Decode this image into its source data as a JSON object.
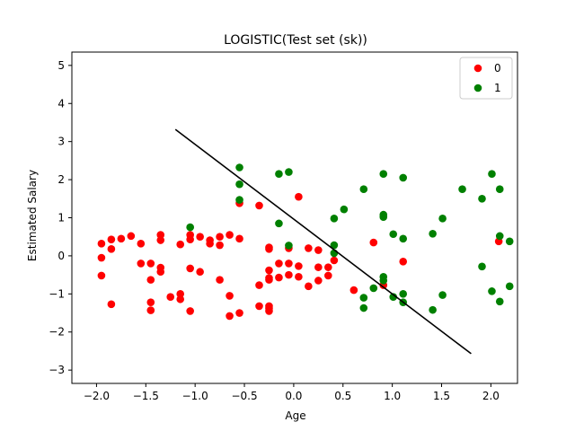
{
  "chart_data": {
    "type": "scatter",
    "title": "LOGISTIC(Test set (sk))",
    "xlabel": "Age",
    "ylabel": "Estimated Salary",
    "xlim": [
      -2.25,
      2.27
    ],
    "ylim": [
      -3.35,
      5.35
    ],
    "xticks": [
      -2.0,
      -1.5,
      -1.0,
      -0.5,
      0.0,
      0.5,
      1.0,
      1.5,
      2.0
    ],
    "xtick_labels": [
      "−2.0",
      "−1.5",
      "−1.0",
      "−0.5",
      "0.0",
      "0.5",
      "1.0",
      "1.5",
      "2.0"
    ],
    "yticks": [
      -3,
      -2,
      -1,
      0,
      1,
      2,
      3,
      4,
      5
    ],
    "ytick_labels": [
      "−3",
      "−2",
      "−1",
      "0",
      "1",
      "2",
      "3",
      "4",
      "5"
    ],
    "grid": false,
    "legend": {
      "placement": "top-right"
    },
    "series": [
      {
        "name": "0",
        "color": "#ff0000",
        "points": [
          [
            -1.95,
            0.32
          ],
          [
            -1.95,
            -0.05
          ],
          [
            -1.95,
            -0.52
          ],
          [
            -1.85,
            0.43
          ],
          [
            -1.85,
            0.18
          ],
          [
            -1.85,
            -1.27
          ],
          [
            -1.75,
            0.45
          ],
          [
            -1.65,
            0.52
          ],
          [
            -1.55,
            0.32
          ],
          [
            -1.55,
            -0.2
          ],
          [
            -1.45,
            -0.2
          ],
          [
            -1.45,
            -0.63
          ],
          [
            -1.45,
            -1.22
          ],
          [
            -1.45,
            -1.43
          ],
          [
            -1.35,
            0.55
          ],
          [
            -1.35,
            0.41
          ],
          [
            -1.35,
            -0.31
          ],
          [
            -1.35,
            -0.42
          ],
          [
            -1.25,
            -1.08
          ],
          [
            -1.15,
            0.3
          ],
          [
            -1.15,
            -1.0
          ],
          [
            -1.15,
            -1.14
          ],
          [
            -1.05,
            0.55
          ],
          [
            -1.05,
            0.43
          ],
          [
            -1.05,
            -0.33
          ],
          [
            -1.05,
            -1.45
          ],
          [
            -0.95,
            0.5
          ],
          [
            -0.95,
            -0.42
          ],
          [
            -0.85,
            0.41
          ],
          [
            -0.85,
            0.32
          ],
          [
            -0.75,
            0.5
          ],
          [
            -0.75,
            0.28
          ],
          [
            -0.75,
            -0.63
          ],
          [
            -0.65,
            0.55
          ],
          [
            -0.65,
            -1.05
          ],
          [
            -0.65,
            -1.58
          ],
          [
            -0.55,
            1.38
          ],
          [
            -0.55,
            0.45
          ],
          [
            -0.55,
            -1.5
          ],
          [
            -0.35,
            1.32
          ],
          [
            -0.35,
            -0.77
          ],
          [
            -0.35,
            -1.32
          ],
          [
            -0.25,
            0.22
          ],
          [
            -0.25,
            0.18
          ],
          [
            -0.25,
            -0.38
          ],
          [
            -0.25,
            -0.58
          ],
          [
            -0.25,
            -0.63
          ],
          [
            -0.25,
            -1.32
          ],
          [
            -0.25,
            -1.38
          ],
          [
            -0.25,
            -1.45
          ],
          [
            -0.15,
            -0.2
          ],
          [
            -0.15,
            -0.57
          ],
          [
            -0.05,
            0.2
          ],
          [
            -0.05,
            -0.2
          ],
          [
            -0.05,
            -0.5
          ],
          [
            0.05,
            -0.27
          ],
          [
            0.05,
            -0.55
          ],
          [
            0.05,
            1.55
          ],
          [
            0.15,
            0.2
          ],
          [
            0.15,
            -0.8
          ],
          [
            0.25,
            0.15
          ],
          [
            0.25,
            -0.3
          ],
          [
            0.25,
            -0.65
          ],
          [
            0.35,
            -0.3
          ],
          [
            0.35,
            -0.52
          ],
          [
            0.41,
            -0.12
          ],
          [
            0.61,
            -0.9
          ],
          [
            0.81,
            0.35
          ],
          [
            0.91,
            -0.77
          ],
          [
            1.11,
            -0.15
          ],
          [
            2.08,
            0.38
          ]
        ]
      },
      {
        "name": "1",
        "color": "#008000",
        "points": [
          [
            -1.05,
            0.75
          ],
          [
            -0.55,
            2.32
          ],
          [
            -0.55,
            1.88
          ],
          [
            -0.55,
            1.47
          ],
          [
            -0.15,
            2.15
          ],
          [
            -0.15,
            0.85
          ],
          [
            -0.05,
            2.2
          ],
          [
            -0.05,
            0.27
          ],
          [
            0.41,
            0.98
          ],
          [
            0.41,
            0.28
          ],
          [
            0.41,
            0.07
          ],
          [
            0.51,
            1.22
          ],
          [
            0.71,
            1.75
          ],
          [
            0.71,
            -1.1
          ],
          [
            0.71,
            -1.37
          ],
          [
            0.81,
            -0.85
          ],
          [
            0.91,
            2.15
          ],
          [
            0.91,
            1.08
          ],
          [
            0.91,
            1.02
          ],
          [
            0.91,
            -0.55
          ],
          [
            0.91,
            -0.65
          ],
          [
            1.01,
            0.57
          ],
          [
            1.01,
            -1.08
          ],
          [
            1.11,
            2.05
          ],
          [
            1.11,
            0.45
          ],
          [
            1.11,
            -1.0
          ],
          [
            1.11,
            -1.22
          ],
          [
            1.41,
            0.58
          ],
          [
            1.41,
            -1.42
          ],
          [
            1.51,
            0.98
          ],
          [
            1.51,
            -1.03
          ],
          [
            1.71,
            1.75
          ],
          [
            1.91,
            1.5
          ],
          [
            1.91,
            -0.28
          ],
          [
            2.01,
            2.15
          ],
          [
            2.01,
            -0.93
          ],
          [
            2.09,
            1.75
          ],
          [
            2.09,
            0.52
          ],
          [
            2.09,
            -1.2
          ],
          [
            2.19,
            0.38
          ],
          [
            2.19,
            -0.8
          ]
        ]
      }
    ],
    "lines": [
      {
        "color": "#000000",
        "points": [
          [
            -1.2,
            3.32
          ],
          [
            1.8,
            -2.57
          ]
        ]
      }
    ]
  }
}
